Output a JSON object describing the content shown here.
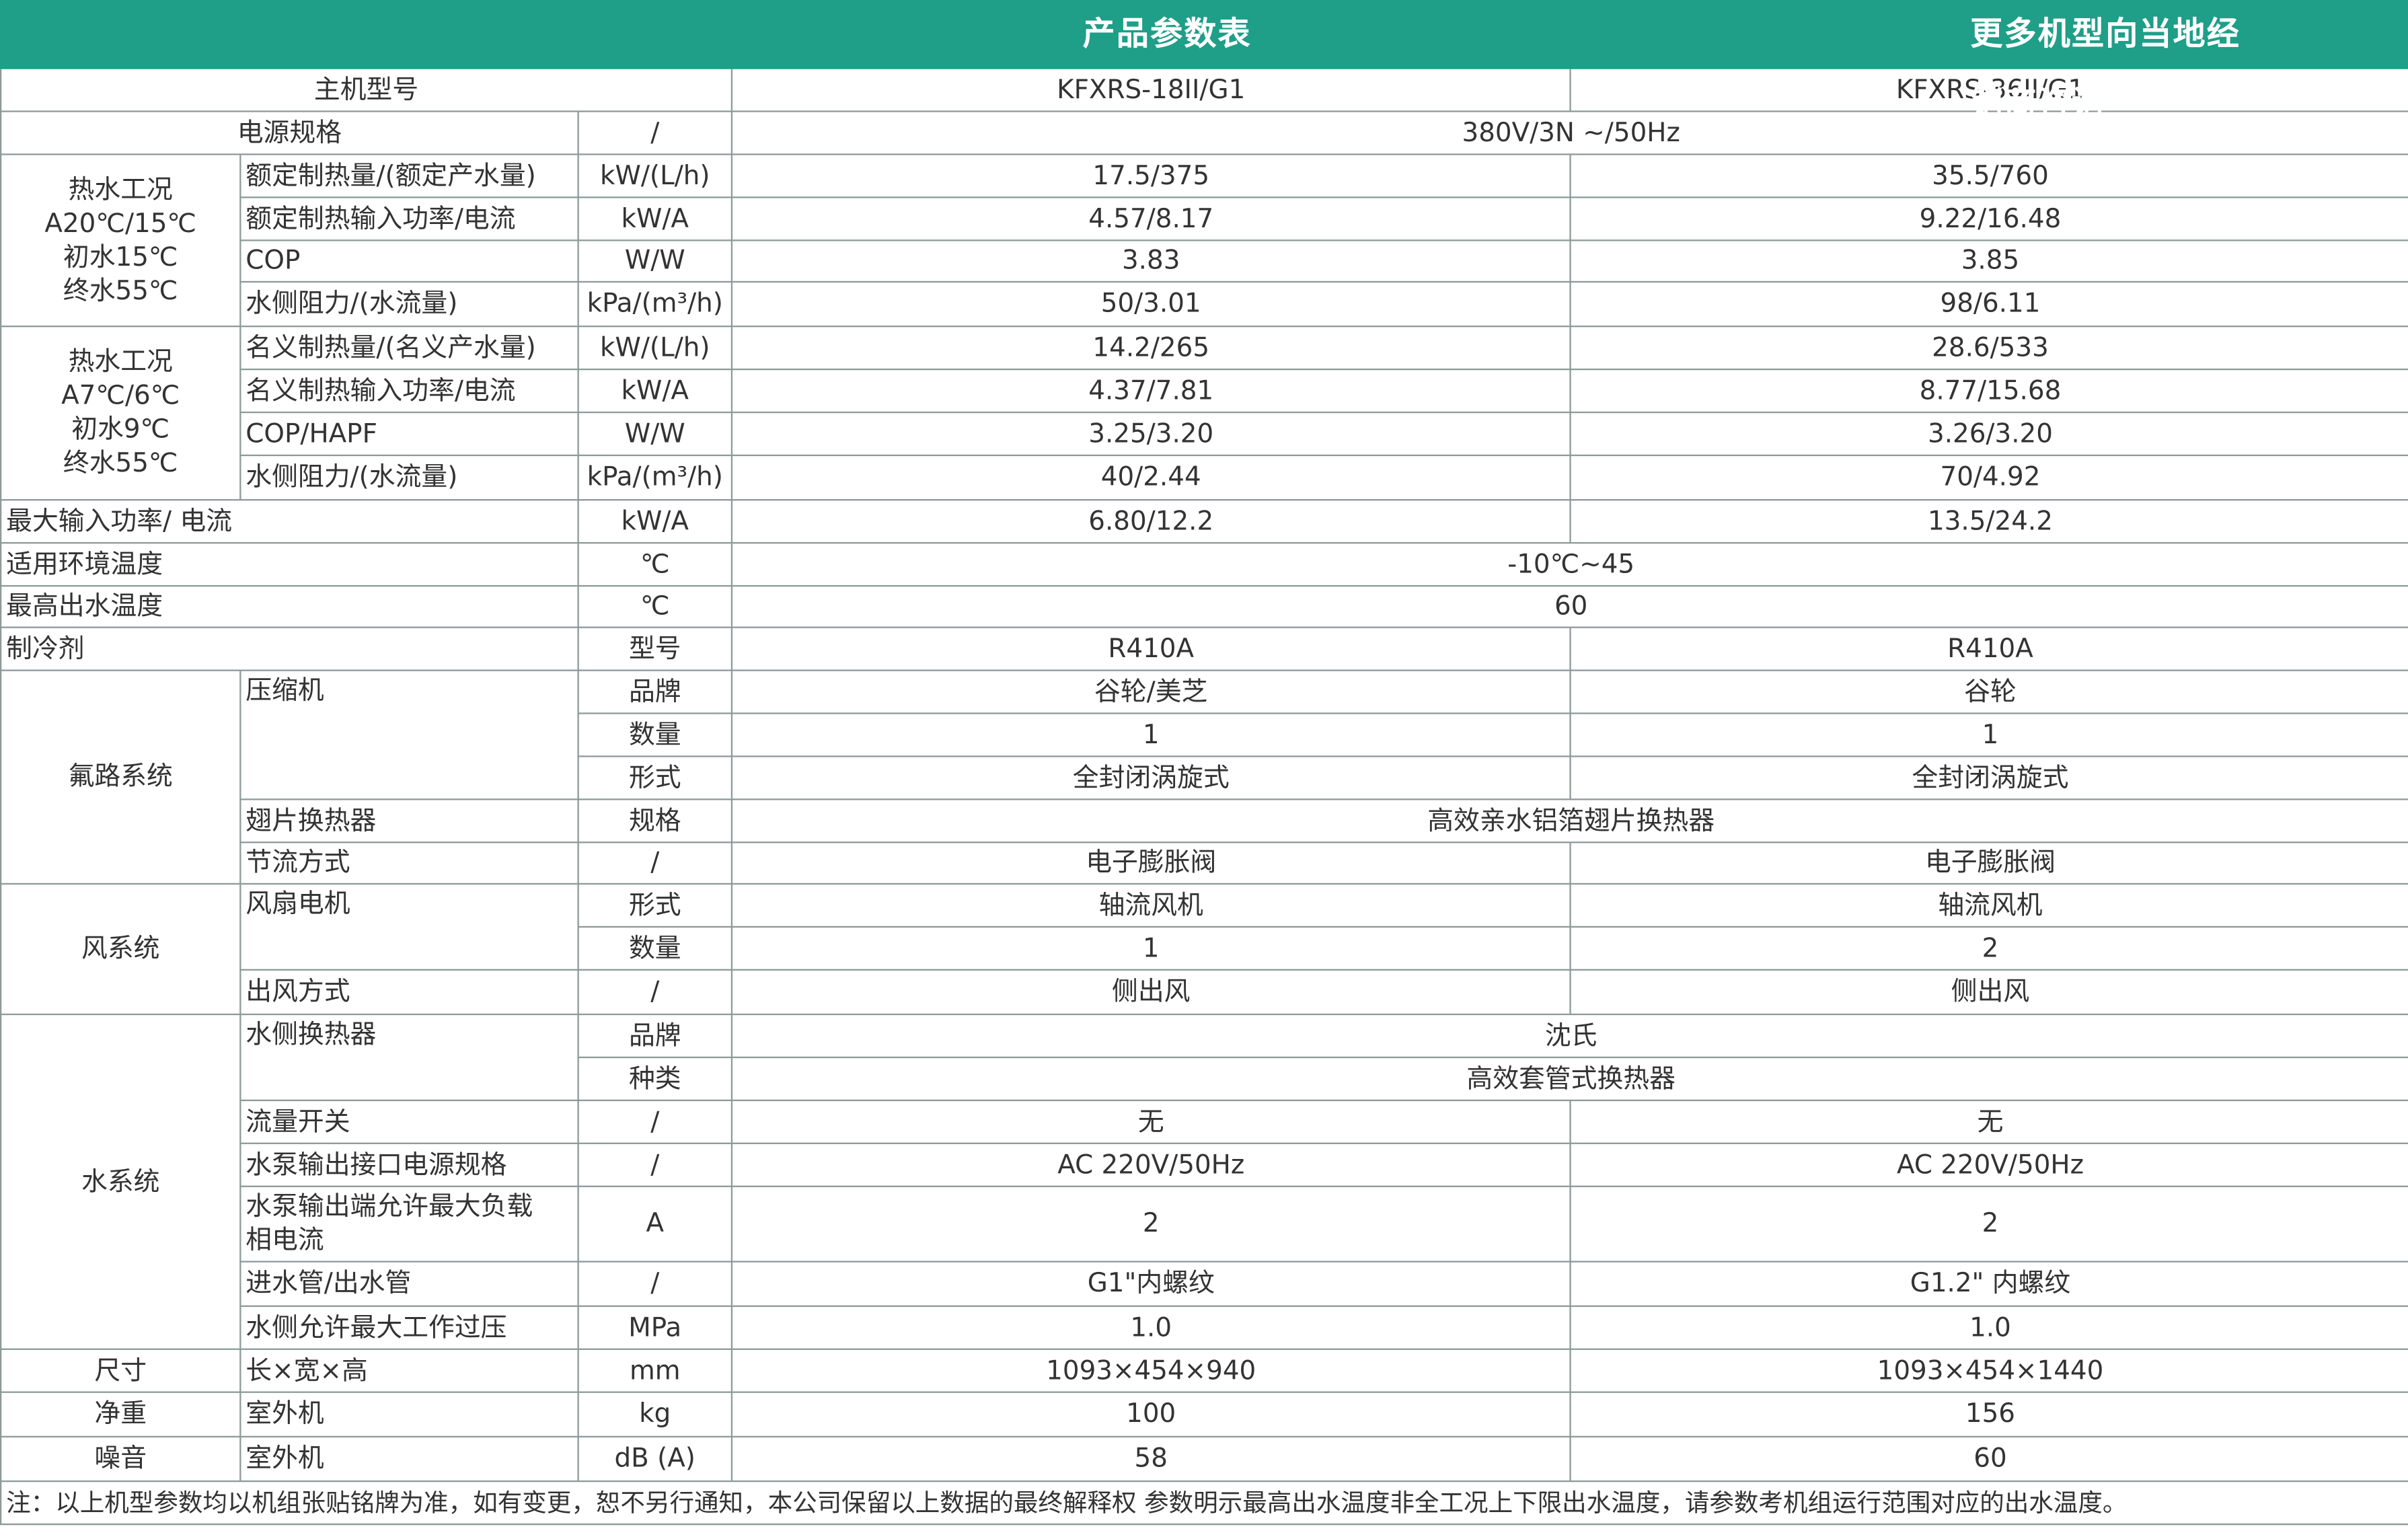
{
  "header": {
    "title": "产品参数表",
    "note": "更多机型向当地经销商咨询"
  },
  "table": {
    "rows": [
      [
        "主机型号",
        "KFXRS-18II/G1",
        "KFXRS-36II/G1"
      ],
      [
        "电源规格",
        "/",
        "380V/3N ~/50Hz"
      ],
      [
        [
          "热水工况",
          "A20℃/15℃",
          "初水15℃",
          "终水55℃"
        ],
        "额定制热量/(额定产水量)",
        "kW/(L/h)",
        "17.5/375",
        "35.5/760"
      ],
      [
        "额定制热输入功率/电流",
        "kW/A",
        "4.57/8.17",
        "9.22/16.48"
      ],
      [
        "COP",
        "W/W",
        "3.83",
        "3.85"
      ],
      [
        "水侧阻力/(水流量)",
        "kPa/(m³/h)",
        "50/3.01",
        "98/6.11"
      ],
      [
        [
          "热水工况",
          "A7℃/6℃",
          "初水9℃",
          "终水55℃"
        ],
        "名义制热量/(名义产水量)",
        "kW/(L/h)",
        "14.2/265",
        "28.6/533"
      ],
      [
        "名义制热输入功率/电流",
        "kW/A",
        "4.37/7.81",
        "8.77/15.68"
      ],
      [
        "COP/HAPF",
        "W/W",
        "3.25/3.20",
        "3.26/3.20"
      ],
      [
        "水侧阻力/(水流量)",
        "kPa/(m³/h)",
        "40/2.44",
        "70/4.92"
      ],
      [
        "最大输入功率/ 电流",
        "kW/A",
        "6.80/12.2",
        "13.5/24.2"
      ],
      [
        "适用环境温度",
        "℃",
        "-10℃~45"
      ],
      [
        "最高出水温度",
        "℃",
        "60"
      ],
      [
        "制冷剂",
        "型号",
        "R410A",
        "R410A"
      ],
      [
        "氟路系统",
        "压缩机",
        "品牌",
        "谷轮/美芝",
        "谷轮"
      ],
      [
        "数量",
        "1",
        "1"
      ],
      [
        "形式",
        "全封闭涡旋式",
        "全封闭涡旋式"
      ],
      [
        "翅片换热器",
        "规格",
        "高效亲水铝箔翅片换热器"
      ],
      [
        "节流方式",
        "/",
        "电子膨胀阀",
        "电子膨胀阀"
      ],
      [
        "风系统",
        "风扇电机",
        "形式",
        "轴流风机",
        "轴流风机"
      ],
      [
        "数量",
        "1",
        "2"
      ],
      [
        "出风方式",
        "/",
        "侧出风",
        "侧出风"
      ],
      [
        "水系统",
        "水侧换热器",
        "品牌",
        "沈氏"
      ],
      [
        "种类",
        "高效套管式换热器"
      ],
      [
        "流量开关",
        "/",
        "无",
        "无"
      ],
      [
        "水泵输出接口电源规格",
        "/",
        "AC 220V/50Hz",
        "AC 220V/50Hz"
      ],
      [
        [
          "水泵输出端允许最大负载",
          "相电流"
        ],
        "A",
        "2",
        "2"
      ],
      [
        "进水管/出水管",
        "/",
        "G1\"内螺纹",
        "G1.2\" 内螺纹"
      ],
      [
        "水侧允许最大工作过压",
        "MPa",
        "1.0",
        "1.0"
      ],
      [
        "尺寸",
        "长×宽×高",
        "mm",
        "1093×454×940",
        "1093×454×1440"
      ],
      [
        "净重",
        "室外机",
        "kg",
        "100",
        "156"
      ],
      [
        "噪音",
        "室外机",
        "dB (A)",
        "58",
        "60"
      ]
    ],
    "footnote": "注：以上机型参数均以机组张贴铭牌为准，如有变更，恕不另行通知，本公司保留以上数据的最终解释权 参数明示最高出水温度非全工况上下限出水温度，请参数考机组运行范围对应的出水温度。"
  }
}
